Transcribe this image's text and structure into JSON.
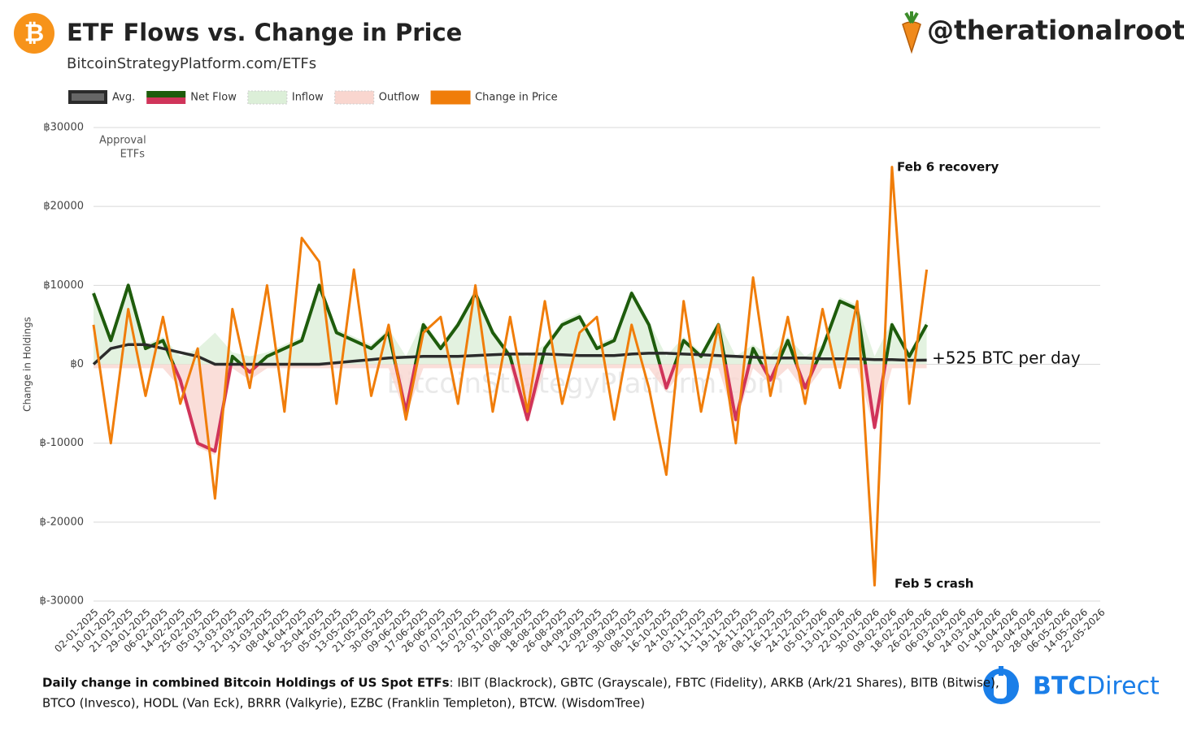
{
  "header": {
    "logo": "₿",
    "subtitle": "BitcoinStrategyPlatform.com/ETFs",
    "handle": "@therationalroot"
  },
  "chart_data": {
    "type": "line",
    "title": "ETF Flows vs. Change in Price",
    "y_label": "Change in Holdings",
    "watermark": "BitcoinStrategyPlatform.com",
    "annotations": [
      "Approval",
      "ETFs",
      "Feb 6 recovery",
      "Feb 5 crash",
      "+525 BTC per day"
    ],
    "categories": [
      "02-01-2025",
      "10-01-2025",
      "21-01-2025",
      "29-01-2025",
      "06-02-2025",
      "14-02-2025",
      "25-02-2025",
      "05-03-2025",
      "13-03-2025",
      "21-03-2025",
      "31-03-2025",
      "08-04-2025",
      "16-04-2025",
      "25-04-2025",
      "05-05-2025",
      "13-05-2025",
      "21-05-2025",
      "30-05-2025",
      "09-06-2025",
      "17-06-2025",
      "26-06-2025",
      "07-07-2025",
      "15-07-2025",
      "23-07-2025",
      "31-07-2025",
      "08-08-2025",
      "18-08-2025",
      "26-08-2025",
      "04-09-2025",
      "12-09-2025",
      "22-09-2025",
      "30-09-2025",
      "08-10-2025",
      "16-10-2025",
      "24-10-2025",
      "03-11-2025",
      "11-11-2025",
      "19-11-2025",
      "28-11-2025",
      "08-12-2025",
      "16-12-2025",
      "24-12-2025",
      "05-01-2026",
      "13-01-2026",
      "22-01-2026",
      "30-01-2026",
      "09-02-2026",
      "18-02-2026",
      "26-02-2026",
      "06-03-2026",
      "16-03-2026",
      "24-03-2026",
      "01-04-2026",
      "10-04-2026",
      "20-04-2026",
      "28-04-2026",
      "06-05-2026",
      "14-05-2026",
      "22-05-2026"
    ],
    "series": [
      {
        "name": "Avg.",
        "color": "#2b2b2b",
        "values": [
          0,
          2000,
          2500,
          2500,
          2000,
          1500,
          1000,
          0,
          0,
          0,
          0,
          0,
          0,
          0,
          200,
          400,
          600,
          800,
          900,
          1000,
          1000,
          1000,
          1100,
          1200,
          1300,
          1300,
          1300,
          1200,
          1100,
          1100,
          1100,
          1300,
          1400,
          1400,
          1300,
          1200,
          1100,
          1000,
          900,
          800,
          800,
          800,
          700,
          700,
          700,
          600,
          600,
          500,
          525,
          null,
          null,
          null,
          null,
          null,
          null,
          null,
          null,
          null,
          null
        ]
      },
      {
        "name": "Net Flow",
        "color": "#1e5c0c",
        "negative_color": "#d0345a",
        "values": [
          9000,
          3000,
          10000,
          2000,
          3000,
          -2000,
          -10000,
          -11000,
          1000,
          -1000,
          1000,
          2000,
          3000,
          10000,
          4000,
          3000,
          2000,
          4000,
          -6000,
          5000,
          2000,
          5000,
          9000,
          4000,
          1000,
          -7000,
          2000,
          5000,
          6000,
          2000,
          3000,
          9000,
          5000,
          -3000,
          3000,
          1000,
          5000,
          -7000,
          2000,
          -2000,
          3000,
          -3000,
          2000,
          8000,
          7000,
          -8000,
          5000,
          1000,
          5000,
          null,
          null,
          null,
          null,
          null,
          null,
          null,
          null,
          null,
          null
        ]
      },
      {
        "name": "Inflow",
        "color": "#dcefd8",
        "values": [
          9500,
          3500,
          10500,
          2500,
          3500,
          1000,
          2000,
          4000,
          1500,
          1000,
          1500,
          2500,
          3500,
          10500,
          4500,
          3500,
          2500,
          4500,
          1000,
          5500,
          2500,
          5500,
          9500,
          4500,
          1500,
          1000,
          2500,
          5500,
          6500,
          2500,
          3500,
          9500,
          5500,
          1000,
          3500,
          1500,
          5500,
          1000,
          2500,
          1000,
          3500,
          1000,
          2500,
          8500,
          7500,
          1000,
          5500,
          1500,
          5500,
          null,
          null,
          null,
          null,
          null,
          null,
          null,
          null,
          null,
          null
        ]
      },
      {
        "name": "Outflow",
        "color": "#f9d6cf",
        "values": [
          -500,
          -500,
          -500,
          -500,
          -500,
          -3000,
          -10500,
          -11500,
          -500,
          -2000,
          -500,
          -500,
          -500,
          -500,
          -500,
          -500,
          -500,
          -500,
          -6500,
          -500,
          -500,
          -500,
          -500,
          -500,
          -500,
          -7500,
          -500,
          -500,
          -500,
          -500,
          -500,
          -500,
          -500,
          -3500,
          -500,
          -500,
          -500,
          -7500,
          -500,
          -2500,
          -500,
          -3500,
          -500,
          -500,
          -500,
          -8500,
          -500,
          -500,
          -500,
          null,
          null,
          null,
          null,
          null,
          null,
          null,
          null,
          null,
          null
        ]
      },
      {
        "name": "Change in Price",
        "color": "#f07d0a",
        "values": [
          5000,
          -10000,
          7000,
          -4000,
          6000,
          -5000,
          2000,
          -17000,
          7000,
          -3000,
          10000,
          -6000,
          16000,
          13000,
          -5000,
          12000,
          -4000,
          5000,
          -7000,
          4000,
          6000,
          -5000,
          10000,
          -6000,
          6000,
          -6000,
          8000,
          -5000,
          4000,
          6000,
          -7000,
          5000,
          -3000,
          -14000,
          8000,
          -6000,
          5000,
          -10000,
          11000,
          -4000,
          6000,
          -5000,
          7000,
          -3000,
          8000,
          -28000,
          25000,
          -5000,
          12000,
          null,
          null,
          null,
          null,
          null,
          null,
          null,
          null,
          null,
          null
        ]
      }
    ],
    "ylim": [
      -30000,
      30000
    ],
    "yticks": [
      {
        "value": -30000,
        "label": "฿-30000"
      },
      {
        "value": -20000,
        "label": "฿-20000"
      },
      {
        "value": -10000,
        "label": "฿-10000"
      },
      {
        "value": 0,
        "label": "฿0"
      },
      {
        "value": 10000,
        "label": "฿10000"
      },
      {
        "value": 20000,
        "label": "฿20000"
      },
      {
        "value": 30000,
        "label": "฿30000"
      }
    ],
    "grid": true,
    "legend": "top-left"
  },
  "footer": {
    "lead": "Daily change in combined Bitcoin Holdings of US Spot ETFs",
    "line1": ": IBIT (Blackrock), GBTC (Grayscale), FBTC (Fidelity), ARKB (Ark/21 Shares), BITB (Bitwise),",
    "line2": "BTCO (Invesco), HODL (Van Eck), BRRR (Valkyrie), EZBC (Franklin Templeton), BTCW. (WisdomTree)",
    "brand_a": "BTC",
    "brand_b": "Direct"
  }
}
